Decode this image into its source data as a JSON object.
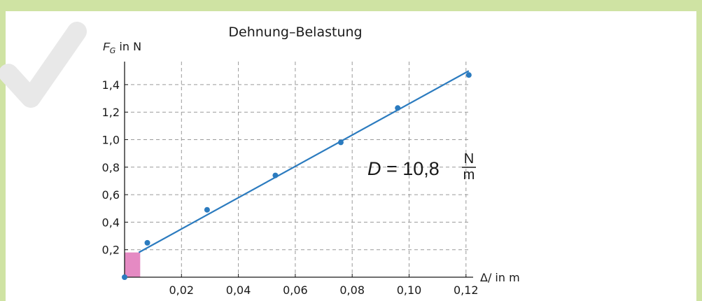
{
  "colors": {
    "background_band": "#cfe3a3",
    "content": "#ffffff",
    "series": "#2b7bbf",
    "highlight": "#e58ac3",
    "grid": "#9a9a9a",
    "checkmark": "#e8e8e8"
  },
  "icons": [
    "checkmark-icon"
  ],
  "chart_data": {
    "type": "scatter",
    "title": "Dehnung–Belastung",
    "ylabel": {
      "symbol": "F",
      "subscript": "G",
      "unit": " in N"
    },
    "xlabel": "Δ/ in m",
    "xlim": [
      0,
      0.12
    ],
    "ylim": [
      0,
      1.55
    ],
    "grid": true,
    "x_ticks": [
      {
        "value": 0.02,
        "label": "0,02"
      },
      {
        "value": 0.04,
        "label": "0,04"
      },
      {
        "value": 0.06,
        "label": "0,06"
      },
      {
        "value": 0.08,
        "label": "0,08"
      },
      {
        "value": 0.1,
        "label": "0,10"
      },
      {
        "value": 0.12,
        "label": "0,12"
      }
    ],
    "y_ticks": [
      {
        "value": 0.2,
        "label": "0,2"
      },
      {
        "value": 0.4,
        "label": "0,4"
      },
      {
        "value": 0.6,
        "label": "0,6"
      },
      {
        "value": 0.8,
        "label": "0,8"
      },
      {
        "value": 1.0,
        "label": "1,0"
      },
      {
        "value": 1.2,
        "label": "1,2"
      },
      {
        "value": 1.4,
        "label": "1,4"
      }
    ],
    "points": [
      {
        "x": 0.0,
        "y": 0.0
      },
      {
        "x": 0.008,
        "y": 0.25
      },
      {
        "x": 0.029,
        "y": 0.49
      },
      {
        "x": 0.053,
        "y": 0.74
      },
      {
        "x": 0.076,
        "y": 0.98
      },
      {
        "x": 0.096,
        "y": 1.23
      },
      {
        "x": 0.121,
        "y": 1.47
      }
    ],
    "fit_line": {
      "x_start": 0.005,
      "y_start": 0.18,
      "x_end": 0.121,
      "y_end": 1.5
    },
    "highlight_rect": {
      "x0": 0.0,
      "x1": 0.005,
      "y0": 0.0,
      "y1": 0.18
    },
    "annotation": {
      "lhs": "D",
      "equals": " = 10,8 ",
      "numerator": "N",
      "denominator": "m"
    }
  }
}
